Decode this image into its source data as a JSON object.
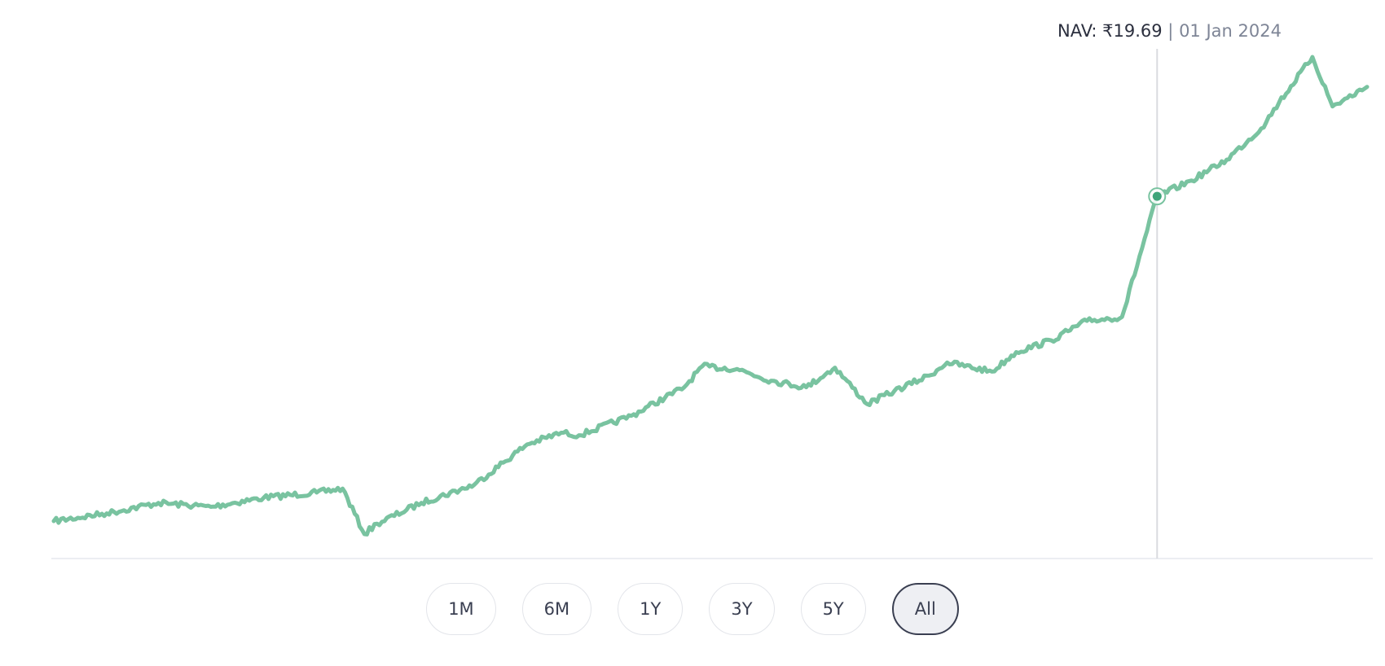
{
  "tooltip": {
    "nav_label": "NAV: ",
    "nav_value": "₹19.69",
    "separator": " | ",
    "date": "01 Jan 2024"
  },
  "range_buttons": [
    {
      "label": "1M",
      "active": false
    },
    {
      "label": "6M",
      "active": false
    },
    {
      "label": "1Y",
      "active": false
    },
    {
      "label": "3Y",
      "active": false
    },
    {
      "label": "5Y",
      "active": false
    },
    {
      "label": "All",
      "active": true
    }
  ],
  "colors": {
    "line": "#79c3a0",
    "marker": "#3fa57a",
    "crosshair": "#d9dbe0",
    "baseline": "#eceef2"
  },
  "chart_data": {
    "type": "line",
    "title": "",
    "xlabel": "",
    "ylabel": "",
    "grid": false,
    "legend": "none",
    "x": [
      "2018-10-01",
      "2019-01-01",
      "2019-04-01",
      "2019-07-01",
      "2019-10-01",
      "2020-01-01",
      "2020-02-15",
      "2020-03-24",
      "2020-04-15",
      "2020-07-01",
      "2020-10-01",
      "2021-01-01",
      "2021-03-01",
      "2021-04-01",
      "2021-07-01",
      "2021-10-01",
      "2021-11-01",
      "2022-01-01",
      "2022-03-01",
      "2022-05-01",
      "2022-06-20",
      "2022-08-15",
      "2022-10-01",
      "2022-12-01",
      "2023-01-01",
      "2023-03-20",
      "2023-05-01",
      "2023-07-01",
      "2023-09-01",
      "2023-11-01",
      "2024-01-01",
      "2024-03-01",
      "2024-05-01",
      "2024-06-30",
      "2024-07-31",
      "2024-09-27",
      "2024-11-01",
      "2024-12-31"
    ],
    "values": [
      7.2,
      7.5,
      7.9,
      7.75,
      8.1,
      8.3,
      8.45,
      6.7,
      7.1,
      7.9,
      8.6,
      10.15,
      10.6,
      10.5,
      11.25,
      12.35,
      13.15,
      13.05,
      12.6,
      12.35,
      13.1,
      11.7,
      12.2,
      12.8,
      13.3,
      12.95,
      13.7,
      14.15,
      14.9,
      15.05,
      19.69,
      20.3,
      21.1,
      22.3,
      23.3,
      25.05,
      23.15,
      23.9
    ],
    "markers": [
      {
        "x": "2024-01-01",
        "y": 19.69
      }
    ]
  }
}
